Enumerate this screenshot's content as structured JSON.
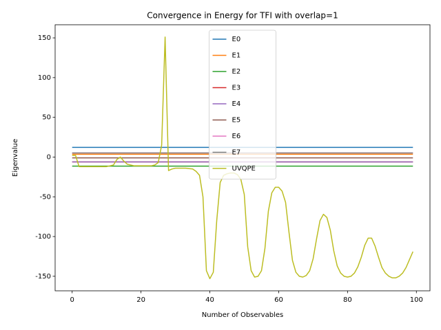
{
  "chart_data": {
    "type": "line",
    "title": "Convergence in Energy for TFI with overlap=1",
    "x_label": "Number of Observables",
    "y_label": "Eigenvalue",
    "xlim": [
      -4.95,
      103.95
    ],
    "ylim": [
      -168.3,
      166.5
    ],
    "xticks": [
      0,
      20,
      40,
      60,
      80,
      100
    ],
    "yticks": [
      -150,
      -100,
      -50,
      0,
      50,
      100,
      150
    ],
    "legend_loc": "upper center",
    "series": [
      {
        "name": "E0",
        "color": "#1f77b4",
        "x": [
          0,
          99
        ],
        "values": [
          12.2,
          12.2
        ]
      },
      {
        "name": "E1",
        "color": "#ff7f0e",
        "x": [
          0,
          99
        ],
        "values": [
          3.5,
          3.5
        ]
      },
      {
        "name": "E2",
        "color": "#2ca02c",
        "x": [
          0,
          99
        ],
        "values": [
          -11.4,
          -11.4
        ]
      },
      {
        "name": "E3",
        "color": "#d62728",
        "x": [
          0,
          99
        ],
        "values": [
          -6.1,
          -6.1
        ]
      },
      {
        "name": "E4",
        "color": "#9467bd",
        "x": [
          0,
          99
        ],
        "values": [
          -6.1,
          -6.1
        ]
      },
      {
        "name": "E5",
        "color": "#8c564b",
        "x": [
          0,
          99
        ],
        "values": [
          -1.0,
          -1.0
        ]
      },
      {
        "name": "E6",
        "color": "#e377c2",
        "x": [
          0,
          99
        ],
        "values": [
          5.2,
          5.2
        ]
      },
      {
        "name": "E7",
        "color": "#7f7f7f",
        "x": [
          0,
          99
        ],
        "values": [
          5.2,
          5.2
        ]
      },
      {
        "name": "UVQPE",
        "color": "#bcbd22",
        "x": [
          0,
          1,
          2,
          3,
          4,
          5,
          6,
          7,
          8,
          9,
          10,
          11,
          12,
          13,
          14,
          15,
          16,
          17,
          18,
          19,
          20,
          21,
          22,
          23,
          24,
          25,
          26,
          27,
          28,
          29,
          30,
          31,
          32,
          33,
          34,
          35,
          36,
          37,
          38,
          39,
          40,
          41,
          42,
          43,
          44,
          45,
          46,
          47,
          48,
          49,
          50,
          51,
          52,
          53,
          54,
          55,
          56,
          57,
          58,
          59,
          60,
          61,
          62,
          63,
          64,
          65,
          66,
          67,
          68,
          69,
          70,
          71,
          72,
          73,
          74,
          75,
          76,
          77,
          78,
          79,
          80,
          81,
          82,
          83,
          84,
          85,
          86,
          87,
          88,
          89,
          90,
          91,
          92,
          93,
          94,
          95,
          96,
          97,
          98,
          99
        ],
        "values": [
          2,
          2,
          -12,
          -12,
          -12,
          -12,
          -12,
          -12,
          -12,
          -12,
          -12,
          -11,
          -10,
          -3,
          0,
          -5,
          -9,
          -10,
          -11,
          -11,
          -11,
          -11,
          -11,
          -11,
          -10,
          -7,
          15,
          151,
          -17,
          -15,
          -14,
          -14,
          -14,
          -14,
          -14.5,
          -15,
          -18,
          -23,
          -50,
          -143,
          -153,
          -145,
          -80,
          -32,
          -23,
          -21,
          -20,
          -20,
          -22,
          -28,
          -47,
          -113,
          -143,
          -151,
          -150,
          -143,
          -115,
          -68,
          -45,
          -38,
          -38,
          -43,
          -57,
          -95,
          -130,
          -145,
          -150,
          -151,
          -149,
          -143,
          -128,
          -103,
          -80,
          -72,
          -76,
          -92,
          -118,
          -137,
          -146,
          -150,
          -151,
          -150,
          -146,
          -138,
          -126,
          -111,
          -102,
          -102,
          -112,
          -126,
          -139,
          -146,
          -150,
          -152,
          -152,
          -150,
          -146,
          -139,
          -129,
          -119
        ]
      }
    ]
  }
}
